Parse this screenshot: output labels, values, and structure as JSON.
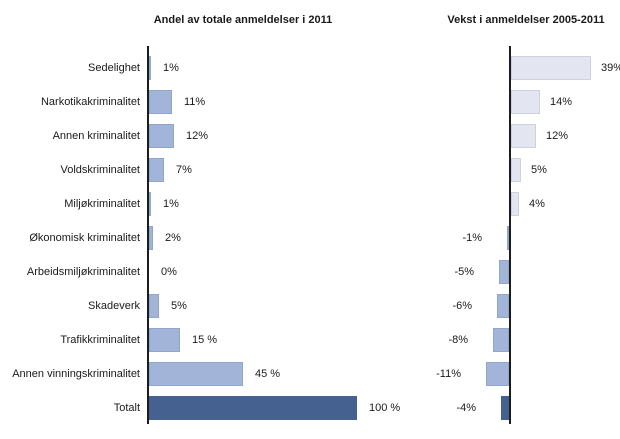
{
  "charts": {
    "left_title": "Andel av totale anmeldelser i 2011",
    "right_title": "Vekst i anmeldelser 2005-2011"
  },
  "chart_data": {
    "type": "bar",
    "orientation": "horizontal",
    "grid": false,
    "legend": "none",
    "value_unit": "%",
    "categories": [
      "Sedelighet",
      "Narkotikakriminalitet",
      "Annen kriminalitet",
      "Voldskriminalitet",
      "Miljøkriminalitet",
      "Økonomisk kriminalitet",
      "Arbeidsmiljøkriminalitet",
      "Skadeverk",
      "Trafikkriminalitet",
      "Annen vinningskriminalitet",
      "Totalt"
    ],
    "series": [
      {
        "name": "Andel av totale anmeldelser i 2011",
        "values": [
          1,
          11,
          12,
          7,
          1,
          2,
          0,
          5,
          15,
          45,
          100
        ],
        "labels": [
          "1%",
          "11%",
          "12%",
          "7%",
          "1%",
          "2%",
          "0%",
          "5%",
          "15 %",
          "45 %",
          "100 %"
        ]
      },
      {
        "name": "Vekst i anmeldelser 2005-2011",
        "values": [
          39,
          14,
          12,
          5,
          4,
          -1,
          -5,
          -6,
          -8,
          -11,
          -4
        ],
        "labels": [
          "39%",
          "14%",
          "12%",
          "5%",
          "4%",
          "-1%",
          "-5%",
          "-6%",
          "-8%",
          "-11%",
          "-4%"
        ]
      }
    ],
    "highlight_category": "Totalt",
    "colors": {
      "share_bar": "#a2b5d9",
      "share_bar_border": "#8fa6cd",
      "growth_positive_bar": "#e3e5f1",
      "growth_positive_border": "#cdd1e1",
      "growth_negative_bar": "#a2b5d9",
      "growth_negative_border": "#8fa6cd",
      "total_bar": "#45618f",
      "axis": "#1c1c1c",
      "text": "#1a1a1a"
    }
  }
}
